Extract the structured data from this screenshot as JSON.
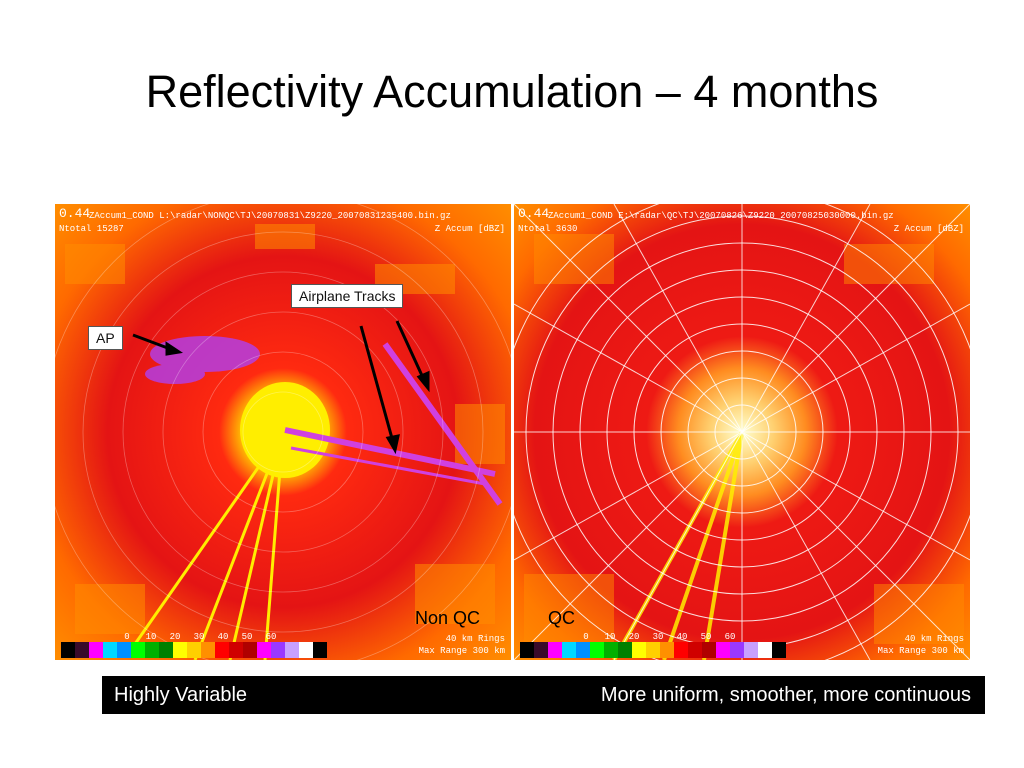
{
  "slide": {
    "title": "Reflectivity Accumulation – 4 months",
    "caption_left": "Highly Variable",
    "caption_right": "More uniform, smoother, more continuous"
  },
  "left_panel": {
    "elev": "0.44",
    "path": "ZAccum1_COND L:\\radar\\NONQC\\TJ\\20070831\\Z9220_20070831235400.bin.gz",
    "ntotal": "Ntotal 15287",
    "units": "Z Accum [dBZ]",
    "label": "Non QC",
    "rings": "40 km Rings",
    "max_range": "Max Range 300 km",
    "callout_airplane": "Airplane Tracks",
    "callout_ap": "AP"
  },
  "right_panel": {
    "elev": "0.44",
    "path": "ZAccum1_COND E:\\radar\\QC\\TJ\\20070826\\Z9220_20070825030000.bin.gz",
    "ntotal": "Ntotal 3630",
    "units": "Z Accum [dBZ]",
    "label": "QC",
    "rings": "40 km Rings",
    "max_range": "Max Range 300 km"
  },
  "colorbar": {
    "ticks": [
      "0",
      "10",
      "20",
      "30",
      "40",
      "50",
      "60"
    ],
    "colors": [
      "#000000",
      "#3a0a2a",
      "#ff00ff",
      "#00d8ff",
      "#0090ff",
      "#00ff00",
      "#00b000",
      "#008000",
      "#ffff00",
      "#ffd000",
      "#ff9000",
      "#ff0000",
      "#d00000",
      "#b00000",
      "#ff00ff",
      "#9a38ff",
      "#c8a0ff",
      "#ffffff",
      "#000000"
    ]
  },
  "colors": {
    "radar_red": "#e41414",
    "radar_orange": "#ff8c00",
    "radar_yellow": "#ffee00",
    "radar_magenta": "#d040e0",
    "ring_white": "#ffffff",
    "caption_bg": "#000000"
  }
}
